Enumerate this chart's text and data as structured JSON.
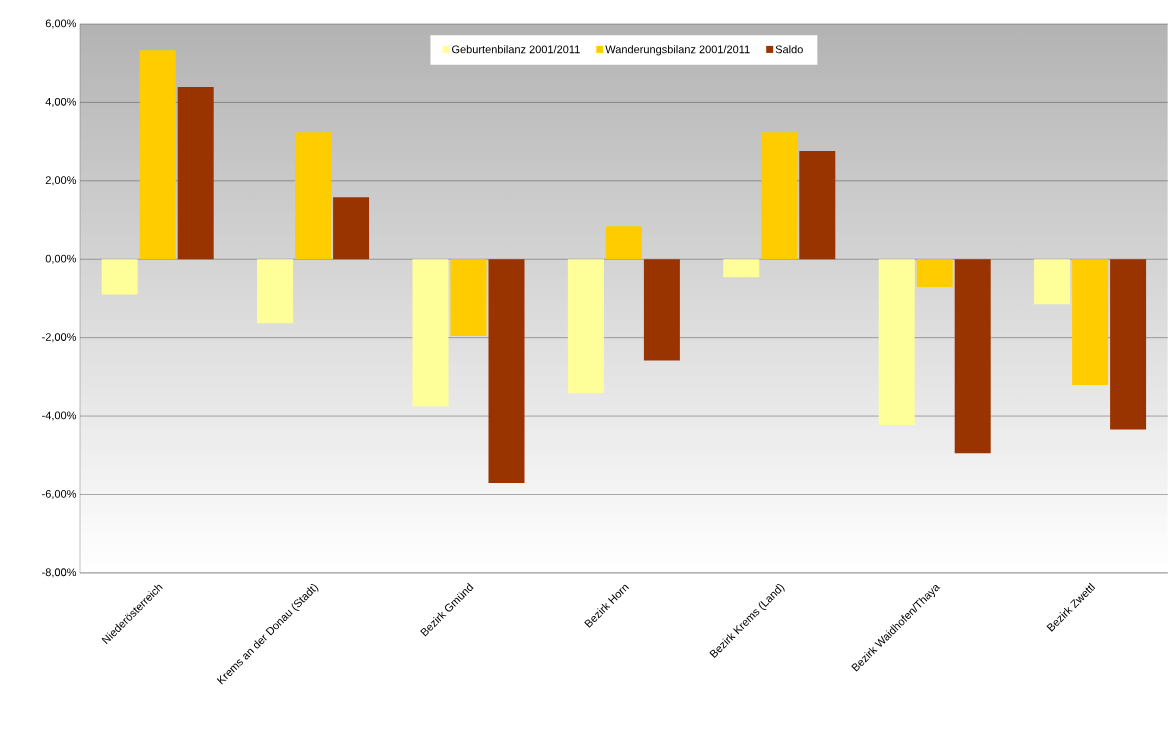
{
  "chart_data": {
    "type": "bar",
    "categories": [
      "Niederösterreich",
      "Krems an der Donau (Stadt)",
      "Bezirk Gmünd",
      "Bezirk Horn",
      "Bezirk Krems (Land)",
      "Bezirk Waidhofen/Thaya",
      "Bezirk Zwettl"
    ],
    "series": [
      {
        "name": "Geburtenbilanz 2001/2011",
        "color": "#ffff99",
        "values": [
          -0.9,
          -1.63,
          -3.75,
          -3.42,
          -0.46,
          -4.23,
          -1.15
        ]
      },
      {
        "name": "Wanderungsbilanz 2001/2011",
        "color": "#ffcc00",
        "values": [
          5.33,
          3.24,
          -1.96,
          0.84,
          3.24,
          -0.71,
          -3.21
        ]
      },
      {
        "name": "Saldo",
        "color": "#993300",
        "values": [
          4.39,
          1.58,
          -5.71,
          -2.58,
          2.76,
          -4.95,
          -4.34
        ]
      }
    ],
    "ylim": [
      -8,
      6
    ],
    "yticks": [
      {
        "value": -8,
        "label": "-8,00%"
      },
      {
        "value": -6,
        "label": "-6,00%"
      },
      {
        "value": -4,
        "label": "-4,00%"
      },
      {
        "value": -2,
        "label": "-2,00%"
      },
      {
        "value": 0,
        "label": "0,00%"
      },
      {
        "value": 2,
        "label": "2,00%"
      },
      {
        "value": 4,
        "label": "4,00%"
      },
      {
        "value": 6,
        "label": "6,00%"
      }
    ],
    "grid": "y",
    "legend": "top"
  }
}
